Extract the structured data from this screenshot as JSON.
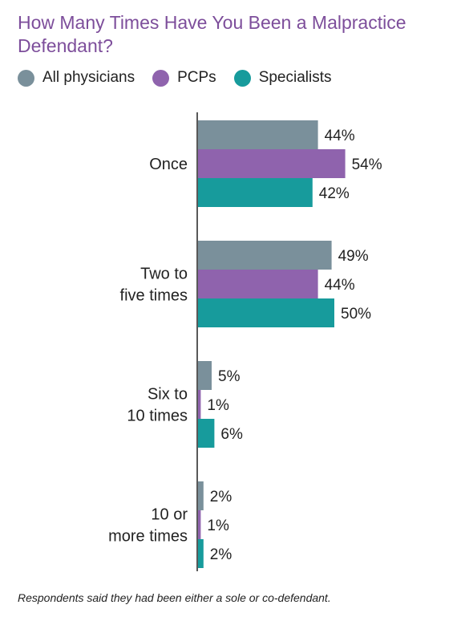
{
  "chart_data": {
    "type": "bar",
    "orientation": "horizontal",
    "title": "How Many Times Have You Been a Malpractice Defendant?",
    "categories": [
      [
        "Once"
      ],
      [
        "Two to",
        "five times"
      ],
      [
        "Six to",
        "10 times"
      ],
      [
        "10 or",
        "more times"
      ]
    ],
    "series": [
      {
        "name": "All physicians",
        "color": "#7a909b",
        "values": [
          44,
          49,
          5,
          2
        ],
        "labels": [
          "44%",
          "49%",
          "5%",
          "2%"
        ]
      },
      {
        "name": "PCPs",
        "color": "#8f63ad",
        "values": [
          54,
          44,
          1,
          1
        ],
        "labels": [
          "54%",
          "44%",
          "1%",
          "1%"
        ]
      },
      {
        "name": "Specialists",
        "color": "#179b9c",
        "values": [
          42,
          50,
          6,
          2
        ],
        "labels": [
          "42%",
          "50%",
          "6%",
          "2%"
        ]
      }
    ],
    "xlim": [
      0,
      100
    ],
    "grid": false,
    "legend_position": "top-left"
  },
  "footnote": "Respondents said they had been either a sole or co-defendant."
}
